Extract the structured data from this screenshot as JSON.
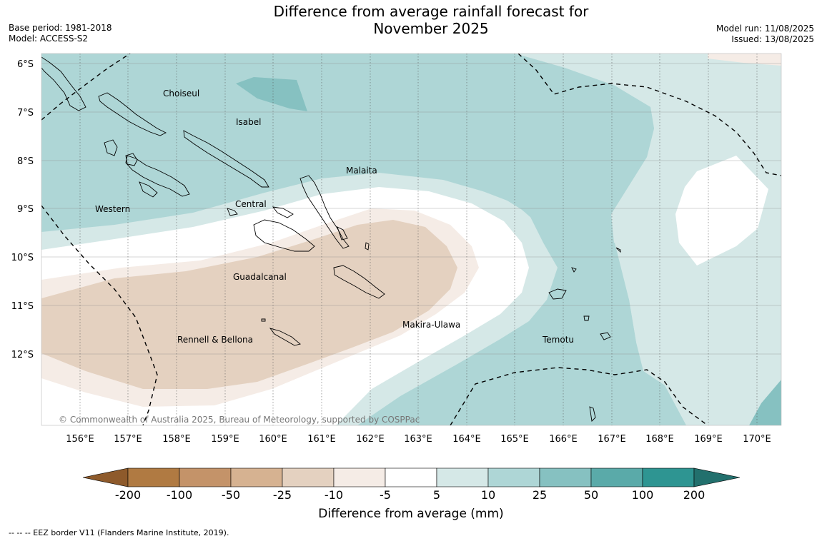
{
  "title": {
    "line1": "Difference from average rainfall forecast for",
    "line2": "November 2025"
  },
  "meta": {
    "base_period": "Base period: 1981-2018",
    "model": "Model: ACCESS-S2",
    "model_run": "Model run: 11/08/2025",
    "issued": "Issued: 13/08/2025"
  },
  "map": {
    "lat_labels": [
      "6°S",
      "7°S",
      "8°S",
      "9°S",
      "10°S",
      "11°S",
      "12°S"
    ],
    "lon_labels": [
      "156°E",
      "157°E",
      "158°E",
      "159°E",
      "160°E",
      "161°E",
      "162°E",
      "163°E",
      "164°E",
      "165°E",
      "166°E",
      "167°E",
      "168°E",
      "169°E",
      "170°E"
    ],
    "places": [
      "Choiseul",
      "Isabel",
      "Malaita",
      "Western",
      "Central",
      "Guadalcanal",
      "Makira-Ulawa",
      "Rennell & Bellona",
      "Temotu"
    ],
    "copyright": "© Commonwealth of Australia 2025, Bureau of Meteorology, supported by COSPPac"
  },
  "legend": {
    "ticks": [
      "-200",
      "-100",
      "-50",
      "-25",
      "-10",
      "-5",
      "5",
      "10",
      "25",
      "50",
      "100",
      "200"
    ],
    "colors": [
      "#8e5a2b",
      "#b07a42",
      "#c49369",
      "#d6b291",
      "#e4d1c0",
      "#f5ece6",
      "#ffffff",
      "#d5e8e7",
      "#aed6d6",
      "#86c1c1",
      "#5aaaa9",
      "#2e9592",
      "#22706d"
    ],
    "title": "Difference from average (mm)"
  },
  "footnote": "--  --  -- EEZ border V11 (Flanders Marine Institute, 2019)."
}
